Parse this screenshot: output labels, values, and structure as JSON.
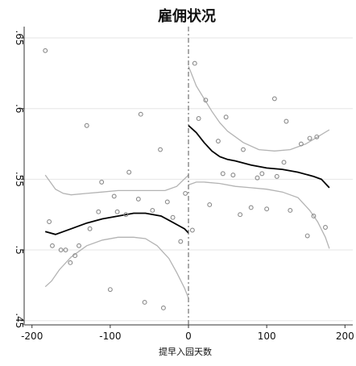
{
  "chart_data": {
    "type": "scatter",
    "title": "雇佣状况",
    "xlabel": "提早入园天数",
    "ylabel": "",
    "xlim": [
      -210,
      210
    ],
    "ylim": [
      0.447,
      0.658
    ],
    "x_ticks": [
      -200,
      -100,
      0,
      100,
      200
    ],
    "x_tick_labels": [
      "-200",
      "-100",
      "0",
      "100",
      "200"
    ],
    "y_ticks": [
      0.45,
      0.5,
      0.55,
      0.6,
      0.65
    ],
    "y_tick_labels": [
      ".45",
      ".5",
      ".55",
      ".6",
      ".65"
    ],
    "grid": true,
    "cutoff": 0,
    "colors": {
      "points": "#8a8a8a",
      "fit_line": "#000000",
      "ci_band": "#b3b3b3",
      "cutoff_line": "#555555",
      "grid": "#e6e6e6"
    },
    "scatter_points": [
      {
        "x": -183,
        "y": 0.641
      },
      {
        "x": -178,
        "y": 0.52
      },
      {
        "x": -174,
        "y": 0.503
      },
      {
        "x": -163,
        "y": 0.5
      },
      {
        "x": -157,
        "y": 0.5
      },
      {
        "x": -151,
        "y": 0.491
      },
      {
        "x": -145,
        "y": 0.496
      },
      {
        "x": -140,
        "y": 0.503
      },
      {
        "x": -130,
        "y": 0.588
      },
      {
        "x": -126,
        "y": 0.515
      },
      {
        "x": -115,
        "y": 0.527
      },
      {
        "x": -111,
        "y": 0.548
      },
      {
        "x": -100,
        "y": 0.472
      },
      {
        "x": -95,
        "y": 0.538
      },
      {
        "x": -91,
        "y": 0.527
      },
      {
        "x": -80,
        "y": 0.525
      },
      {
        "x": -76,
        "y": 0.555
      },
      {
        "x": -64,
        "y": 0.536
      },
      {
        "x": -61,
        "y": 0.596
      },
      {
        "x": -56,
        "y": 0.463
      },
      {
        "x": -46,
        "y": 0.528
      },
      {
        "x": -36,
        "y": 0.571
      },
      {
        "x": -32,
        "y": 0.459
      },
      {
        "x": -27,
        "y": 0.534
      },
      {
        "x": -20,
        "y": 0.523
      },
      {
        "x": -10,
        "y": 0.506
      },
      {
        "x": -4,
        "y": 0.54
      },
      {
        "x": 5,
        "y": 0.514
      },
      {
        "x": 8,
        "y": 0.632
      },
      {
        "x": 13,
        "y": 0.593
      },
      {
        "x": 22,
        "y": 0.606
      },
      {
        "x": 27,
        "y": 0.532
      },
      {
        "x": 38,
        "y": 0.577
      },
      {
        "x": 44,
        "y": 0.554
      },
      {
        "x": 48,
        "y": 0.594
      },
      {
        "x": 57,
        "y": 0.553
      },
      {
        "x": 66,
        "y": 0.525
      },
      {
        "x": 70,
        "y": 0.571
      },
      {
        "x": 80,
        "y": 0.53
      },
      {
        "x": 88,
        "y": 0.551
      },
      {
        "x": 94,
        "y": 0.554
      },
      {
        "x": 100,
        "y": 0.529
      },
      {
        "x": 110,
        "y": 0.607
      },
      {
        "x": 113,
        "y": 0.552
      },
      {
        "x": 122,
        "y": 0.562
      },
      {
        "x": 125,
        "y": 0.591
      },
      {
        "x": 130,
        "y": 0.528
      },
      {
        "x": 144,
        "y": 0.575
      },
      {
        "x": 152,
        "y": 0.51
      },
      {
        "x": 155,
        "y": 0.579
      },
      {
        "x": 160,
        "y": 0.524
      },
      {
        "x": 164,
        "y": 0.58
      },
      {
        "x": 175,
        "y": 0.516
      }
    ],
    "fit_left": {
      "x": [
        -183,
        -170,
        -160,
        -150,
        -130,
        -110,
        -90,
        -70,
        -55,
        -45,
        -35,
        -25,
        -15,
        -5,
        0
      ],
      "y": [
        0.513,
        0.511,
        0.513,
        0.515,
        0.519,
        0.522,
        0.524,
        0.526,
        0.526,
        0.525,
        0.524,
        0.521,
        0.518,
        0.515,
        0.512
      ]
    },
    "fit_right": {
      "x": [
        0,
        10,
        20,
        30,
        40,
        50,
        60,
        80,
        100,
        120,
        140,
        160,
        170,
        175,
        180
      ],
      "y": [
        0.588,
        0.583,
        0.576,
        0.57,
        0.566,
        0.564,
        0.563,
        0.56,
        0.558,
        0.557,
        0.555,
        0.552,
        0.55,
        0.547,
        0.544
      ]
    },
    "ci_left_upper": {
      "x": [
        -183,
        -170,
        -160,
        -150,
        -130,
        -110,
        -90,
        -70,
        -50,
        -30,
        -15,
        0
      ],
      "y": [
        0.553,
        0.543,
        0.54,
        0.539,
        0.54,
        0.541,
        0.542,
        0.542,
        0.542,
        0.542,
        0.545,
        0.553
      ]
    },
    "ci_left_lower": {
      "x": [
        -183,
        -175,
        -165,
        -150,
        -130,
        -110,
        -90,
        -70,
        -55,
        -40,
        -25,
        -15,
        -5,
        0
      ],
      "y": [
        0.474,
        0.478,
        0.486,
        0.495,
        0.503,
        0.507,
        0.509,
        0.509,
        0.508,
        0.503,
        0.494,
        0.484,
        0.473,
        0.466
      ]
    },
    "ci_right_upper": {
      "x": [
        0,
        5,
        10,
        20,
        30,
        40,
        50,
        70,
        90,
        110,
        130,
        150,
        165,
        180
      ],
      "y": [
        0.63,
        0.623,
        0.616,
        0.607,
        0.598,
        0.59,
        0.584,
        0.576,
        0.571,
        0.57,
        0.571,
        0.575,
        0.58,
        0.585
      ]
    },
    "ci_right_lower": {
      "x": [
        0,
        10,
        20,
        40,
        60,
        80,
        100,
        120,
        140,
        155,
        165,
        175,
        180
      ],
      "y": [
        0.546,
        0.548,
        0.548,
        0.547,
        0.545,
        0.544,
        0.543,
        0.541,
        0.537,
        0.528,
        0.52,
        0.509,
        0.501
      ]
    }
  }
}
